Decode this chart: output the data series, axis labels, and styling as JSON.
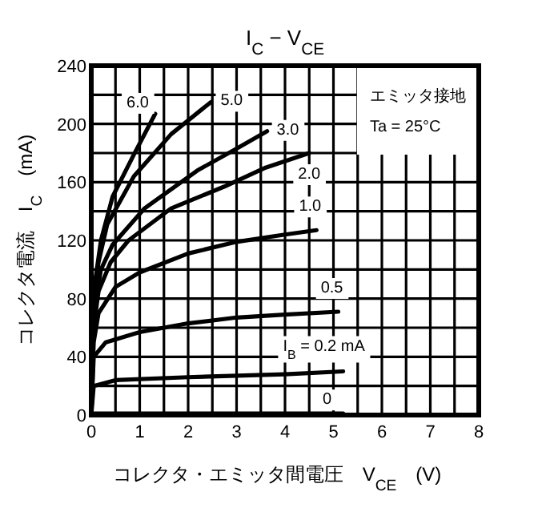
{
  "chart_data": {
    "type": "line",
    "title": "I$_{C}$ − V$_{CE}$",
    "xlabel": "コレクタ・エミッタ間電圧　V$_{CE}$　(V)",
    "ylabel": "コレクタ電流　I$_{C}$　(mA)",
    "xlim": [
      0,
      8
    ],
    "ylim": [
      0,
      240
    ],
    "xticks": [
      0,
      {
        "value": 0.5,
        "label": null
      },
      1,
      {
        "value": 1.5,
        "label": null
      },
      2,
      {
        "value": 2.5,
        "label": null
      },
      3,
      {
        "value": 3.5,
        "label": null
      },
      4,
      {
        "value": 4.5,
        "label": null
      },
      5,
      {
        "value": 5.5,
        "label": null
      },
      6,
      {
        "value": 6.5,
        "label": null
      },
      7,
      {
        "value": 7.5,
        "label": null
      },
      8
    ],
    "yticks": [
      0,
      {
        "value": 20,
        "label": null
      },
      40,
      {
        "value": 60,
        "label": null
      },
      80,
      {
        "value": 100,
        "label": null
      },
      120,
      {
        "value": 140,
        "label": null
      },
      160,
      {
        "value": 180,
        "label": null
      },
      200,
      {
        "value": 220,
        "label": null
      },
      240
    ],
    "grid": true,
    "line_style": "solid",
    "annotations": [
      "エミッタ接地",
      "Ta = 25°C"
    ],
    "series": [
      {
        "name": "6.0",
        "color": "#000000",
        "x": [
          0,
          0.05,
          0.2,
          0.44,
          0.88,
          1.32
        ],
        "values": [
          0,
          85,
          120,
          150,
          179,
          207
        ]
      },
      {
        "name": "5.0",
        "color": "#000000",
        "x": [
          0,
          0.05,
          0.15,
          0.33,
          0.88,
          1.65,
          2.47
        ],
        "values": [
          0,
          80,
          105,
          131,
          164,
          193,
          215
        ]
      },
      {
        "name": "3.0",
        "color": "#000000",
        "x": [
          0,
          0.05,
          0.2,
          0.44,
          1.1,
          2.19,
          3,
          3.63
        ],
        "values": [
          0,
          70,
          100,
          117,
          142,
          168,
          183,
          195
        ]
      },
      {
        "name": "2.0",
        "color": "#000000",
        "x": [
          0,
          0.05,
          0.15,
          0.4,
          0.77,
          1.65,
          2.75,
          3.6,
          4.5
        ],
        "values": [
          0,
          60,
          85,
          105,
          120,
          142,
          157,
          170,
          180
        ]
      },
      {
        "name": "1.0",
        "color": "#000000",
        "x": [
          0,
          0.05,
          0.15,
          0.5,
          1,
          2,
          3,
          4,
          4.65
        ],
        "values": [
          0,
          50,
          70,
          88,
          98,
          111,
          119,
          124,
          127
        ]
      },
      {
        "name": "0.5",
        "color": "#000000",
        "x": [
          0,
          0.05,
          0.3,
          1,
          2,
          3,
          4,
          5.1
        ],
        "values": [
          0,
          40,
          50,
          57,
          63,
          67,
          69,
          71
        ]
      },
      {
        "name": "I$_{B}$ = 0.2 mA",
        "color": "#000000",
        "x": [
          0,
          0.05,
          0.5,
          2,
          4,
          5.2
        ],
        "values": [
          0,
          20,
          24,
          26,
          28,
          30
        ]
      },
      {
        "name": "0",
        "color": "#000000",
        "x": [
          0,
          5.2
        ],
        "values": [
          1,
          1
        ]
      }
    ]
  }
}
